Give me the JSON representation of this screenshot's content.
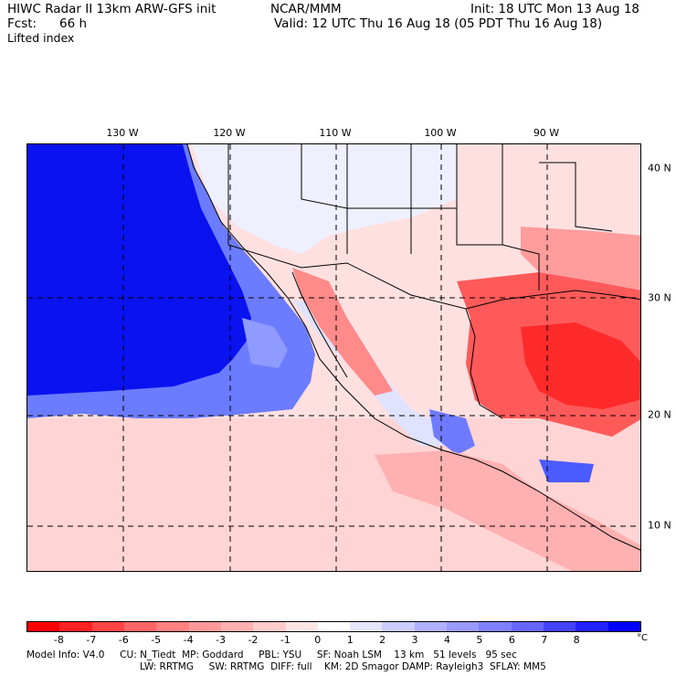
{
  "header": {
    "model": "HIWC Radar II 13km ARW-GFS init",
    "org": "NCAR/MMM",
    "fcst_label": "Fcst:",
    "fcst_value": "66 h",
    "init": "Init: 18 UTC Mon 13 Aug 18",
    "valid": "Valid: 12 UTC Thu 16 Aug 18 (05 PDT Thu 16 Aug 18)",
    "field": "Lifted index"
  },
  "map": {
    "lon_labels": [
      "130 W",
      "120 W",
      "110 W",
      "100 W",
      "90 W"
    ],
    "lat_labels": [
      "40 N",
      "30 N",
      "20 N",
      "10 N"
    ]
  },
  "colorbar": {
    "ticks": [
      "-8",
      "-7",
      "-6",
      "-5",
      "-4",
      "-3",
      "-2",
      "-1",
      "0",
      "1",
      "2",
      "3",
      "4",
      "5",
      "6",
      "7",
      "8"
    ],
    "unit": "°C",
    "colors": [
      "#ff0000",
      "#ff2222",
      "#ff4444",
      "#ff6666",
      "#ff8080",
      "#ff9999",
      "#ffb0b0",
      "#ffcccc",
      "#ffe6e6",
      "#ffffff",
      "#e6e6ff",
      "#ccccff",
      "#b0b0ff",
      "#9999ff",
      "#8080ff",
      "#6666ff",
      "#4444ff",
      "#2222ff",
      "#0000ff"
    ]
  },
  "footer": {
    "line1": "Model Info: V4.0     CU: N_Tiedt  MP: Goddard     PBL: YSU     SF: Noah LSM    13 km   51 levels   95 sec",
    "line2": "LW: RRTMG     SW: RRTMG  DIFF: full    KM: 2D Smagor DAMP: Rayleigh3  SFLAY: MM5"
  },
  "colors": {
    "ocean_stable": "#0000ff",
    "unstable": "#ff4444",
    "neutral": "#ffe6e6"
  }
}
